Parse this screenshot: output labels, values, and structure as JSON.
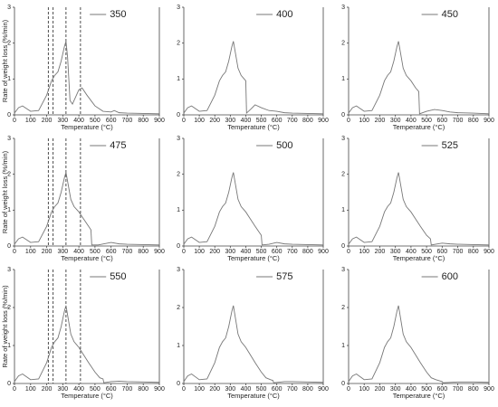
{
  "chart_data": [
    {
      "type": "line",
      "x_label": "Temperature (°C)",
      "y_label": "Rate of weight loss (%/min)",
      "x": [
        0,
        25,
        50,
        100,
        150,
        200,
        230,
        250,
        270,
        290,
        310,
        320,
        330,
        345,
        360,
        380,
        400,
        420,
        450,
        500,
        550,
        600,
        620,
        650,
        700,
        800,
        900
      ],
      "series": [
        {
          "name": "350",
          "color": "#777777",
          "values": [
            0.05,
            0.2,
            0.25,
            0.1,
            0.12,
            0.55,
            0.95,
            1.1,
            1.2,
            1.5,
            1.9,
            2.05,
            1.6,
            0.4,
            0.3,
            0.5,
            0.7,
            0.75,
            0.55,
            0.25,
            0.1,
            0.08,
            0.12,
            0.06,
            0.05,
            0.04,
            0.03
          ]
        }
      ],
      "vlines": [
        210,
        240,
        320,
        410
      ],
      "xlim": [
        0,
        900
      ],
      "xticks": [
        0,
        100,
        200,
        300,
        400,
        500,
        600,
        700,
        800,
        900
      ],
      "ylim": [
        0,
        3
      ],
      "yticks": [
        0,
        1,
        2,
        3
      ]
    },
    {
      "type": "line",
      "x_label": "Temperature (°C)",
      "x": [
        0,
        25,
        50,
        100,
        150,
        200,
        230,
        250,
        270,
        290,
        310,
        320,
        330,
        350,
        370,
        400,
        405,
        430,
        460,
        500,
        550,
        600,
        650,
        700,
        800,
        900
      ],
      "series": [
        {
          "name": "400",
          "color": "#777777",
          "values": [
            0.05,
            0.2,
            0.25,
            0.1,
            0.12,
            0.55,
            0.95,
            1.1,
            1.2,
            1.5,
            1.9,
            2.05,
            1.8,
            1.3,
            1.1,
            0.95,
            0.05,
            0.15,
            0.28,
            0.2,
            0.12,
            0.1,
            0.06,
            0.05,
            0.04,
            0.03
          ]
        }
      ],
      "xlim": [
        0,
        900
      ],
      "xticks": [
        0,
        100,
        200,
        300,
        400,
        500,
        600,
        700,
        800,
        900
      ],
      "ylim": [
        0,
        3
      ],
      "yticks": [
        0,
        1,
        2,
        3
      ]
    },
    {
      "type": "line",
      "x_label": "Temperature (°C)",
      "x": [
        0,
        25,
        50,
        100,
        150,
        200,
        230,
        250,
        270,
        290,
        310,
        320,
        330,
        350,
        370,
        400,
        430,
        450,
        455,
        500,
        550,
        600,
        650,
        700,
        800,
        900
      ],
      "series": [
        {
          "name": "450",
          "color": "#777777",
          "values": [
            0.05,
            0.2,
            0.25,
            0.1,
            0.12,
            0.55,
            0.95,
            1.1,
            1.2,
            1.5,
            1.9,
            2.05,
            1.8,
            1.3,
            1.1,
            0.95,
            0.75,
            0.65,
            0.03,
            0.1,
            0.15,
            0.12,
            0.08,
            0.06,
            0.05,
            0.03
          ]
        }
      ],
      "xlim": [
        0,
        900
      ],
      "xticks": [
        0,
        100,
        200,
        300,
        400,
        500,
        600,
        700,
        800,
        900
      ],
      "ylim": [
        0,
        3
      ],
      "yticks": [
        0,
        1,
        2,
        3
      ]
    },
    {
      "type": "line",
      "x_label": "Temperature (°C)",
      "y_label": "Rate of weight loss (%/min)",
      "x": [
        0,
        25,
        50,
        100,
        150,
        200,
        230,
        250,
        270,
        290,
        310,
        320,
        330,
        350,
        370,
        400,
        430,
        460,
        475,
        480,
        520,
        600,
        650,
        700,
        800,
        900
      ],
      "series": [
        {
          "name": "475",
          "color": "#777777",
          "values": [
            0.05,
            0.2,
            0.25,
            0.1,
            0.12,
            0.55,
            0.95,
            1.1,
            1.2,
            1.5,
            1.9,
            2.05,
            1.8,
            1.3,
            1.1,
            0.95,
            0.75,
            0.55,
            0.45,
            0.03,
            0.03,
            0.1,
            0.06,
            0.05,
            0.04,
            0.03
          ]
        }
      ],
      "vlines": [
        210,
        240,
        320,
        410
      ],
      "xlim": [
        0,
        900
      ],
      "xticks": [
        0,
        100,
        200,
        300,
        400,
        500,
        600,
        700,
        800,
        900
      ],
      "ylim": [
        0,
        3
      ],
      "yticks": [
        0,
        1,
        2,
        3
      ]
    },
    {
      "type": "line",
      "x_label": "Temperature (°C)",
      "x": [
        0,
        25,
        50,
        100,
        150,
        200,
        230,
        250,
        270,
        290,
        310,
        320,
        330,
        350,
        370,
        400,
        430,
        460,
        500,
        505,
        550,
        600,
        650,
        700,
        800,
        900
      ],
      "series": [
        {
          "name": "500",
          "color": "#777777",
          "values": [
            0.05,
            0.2,
            0.25,
            0.1,
            0.12,
            0.55,
            0.95,
            1.1,
            1.2,
            1.5,
            1.9,
            2.05,
            1.8,
            1.3,
            1.1,
            0.95,
            0.75,
            0.55,
            0.3,
            0.03,
            0.05,
            0.1,
            0.06,
            0.05,
            0.04,
            0.03
          ]
        }
      ],
      "xlim": [
        0,
        900
      ],
      "xticks": [
        0,
        100,
        200,
        300,
        400,
        500,
        600,
        700,
        800,
        900
      ],
      "ylim": [
        0,
        3
      ],
      "yticks": [
        0,
        1,
        2,
        3
      ]
    },
    {
      "type": "line",
      "x_label": "Temperature (°C)",
      "x": [
        0,
        25,
        50,
        100,
        150,
        200,
        230,
        250,
        270,
        290,
        310,
        320,
        330,
        350,
        370,
        400,
        430,
        460,
        500,
        525,
        530,
        600,
        650,
        700,
        800,
        900
      ],
      "series": [
        {
          "name": "525",
          "color": "#777777",
          "values": [
            0.05,
            0.2,
            0.25,
            0.1,
            0.12,
            0.55,
            0.95,
            1.1,
            1.2,
            1.5,
            1.9,
            2.05,
            1.8,
            1.3,
            1.1,
            0.95,
            0.75,
            0.55,
            0.3,
            0.2,
            0.03,
            0.08,
            0.06,
            0.05,
            0.04,
            0.03
          ]
        }
      ],
      "xlim": [
        0,
        900
      ],
      "xticks": [
        0,
        100,
        200,
        300,
        400,
        500,
        600,
        700,
        800,
        900
      ],
      "ylim": [
        0,
        3
      ],
      "yticks": [
        0,
        1,
        2,
        3
      ]
    },
    {
      "type": "line",
      "x_label": "Temperature (°C)",
      "y_label": "Rate of weight loss (%/min)",
      "x": [
        0,
        25,
        50,
        100,
        150,
        200,
        230,
        250,
        270,
        290,
        310,
        320,
        330,
        350,
        370,
        400,
        430,
        460,
        500,
        530,
        550,
        555,
        600,
        650,
        700,
        800,
        900
      ],
      "series": [
        {
          "name": "550",
          "color": "#777777",
          "values": [
            0.05,
            0.2,
            0.25,
            0.1,
            0.12,
            0.55,
            0.95,
            1.1,
            1.2,
            1.5,
            1.9,
            2.05,
            1.8,
            1.3,
            1.1,
            0.95,
            0.75,
            0.55,
            0.3,
            0.15,
            0.12,
            0.02,
            0.05,
            0.06,
            0.05,
            0.04,
            0.03
          ]
        }
      ],
      "vlines": [
        210,
        240,
        320,
        410
      ],
      "xlim": [
        0,
        900
      ],
      "xticks": [
        0,
        100,
        200,
        300,
        400,
        500,
        600,
        700,
        800,
        900
      ],
      "ylim": [
        0,
        3
      ],
      "yticks": [
        0,
        1,
        2,
        3
      ]
    },
    {
      "type": "line",
      "x_label": "Temperature (°C)",
      "x": [
        0,
        25,
        50,
        100,
        150,
        200,
        230,
        250,
        270,
        290,
        310,
        320,
        330,
        350,
        370,
        400,
        430,
        460,
        500,
        530,
        560,
        575,
        580,
        650,
        700,
        800,
        900
      ],
      "series": [
        {
          "name": "575",
          "color": "#777777",
          "values": [
            0.05,
            0.2,
            0.25,
            0.1,
            0.12,
            0.55,
            0.95,
            1.1,
            1.2,
            1.5,
            1.9,
            2.05,
            1.8,
            1.3,
            1.1,
            0.95,
            0.75,
            0.55,
            0.3,
            0.15,
            0.1,
            0.08,
            0.02,
            0.05,
            0.05,
            0.04,
            0.03
          ]
        }
      ],
      "xlim": [
        0,
        900
      ],
      "xticks": [
        0,
        100,
        200,
        300,
        400,
        500,
        600,
        700,
        800,
        900
      ],
      "ylim": [
        0,
        3
      ],
      "yticks": [
        0,
        1,
        2,
        3
      ]
    },
    {
      "type": "line",
      "x_label": "Temperature (°C)",
      "x": [
        0,
        25,
        50,
        100,
        150,
        200,
        230,
        250,
        270,
        290,
        310,
        320,
        330,
        350,
        370,
        400,
        430,
        460,
        500,
        530,
        560,
        600,
        605,
        700,
        800,
        900
      ],
      "series": [
        {
          "name": "600",
          "color": "#777777",
          "values": [
            0.05,
            0.2,
            0.25,
            0.1,
            0.12,
            0.55,
            0.95,
            1.1,
            1.2,
            1.5,
            1.9,
            2.05,
            1.8,
            1.3,
            1.1,
            0.95,
            0.75,
            0.55,
            0.3,
            0.15,
            0.1,
            0.05,
            0.02,
            0.04,
            0.04,
            0.03
          ]
        }
      ],
      "xlim": [
        0,
        900
      ],
      "xticks": [
        0,
        100,
        200,
        300,
        400,
        500,
        600,
        700,
        800,
        900
      ],
      "ylim": [
        0,
        3
      ],
      "yticks": [
        0,
        1,
        2,
        3
      ]
    }
  ]
}
